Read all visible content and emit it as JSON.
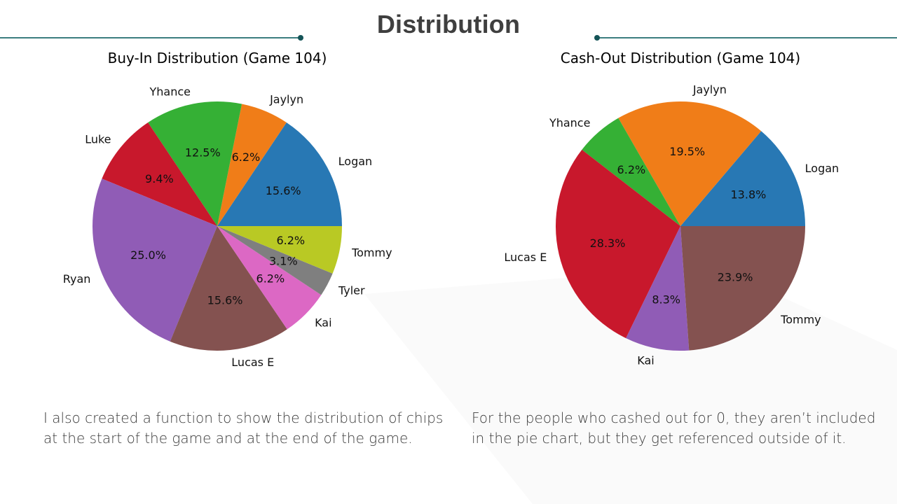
{
  "slide": {
    "title": "Distribution",
    "caption_left": "I also created a function to show the distribution of chips at the start of the game and at the end of the game.",
    "caption_right": "For the people who cashed out for 0, they aren’t included in the pie chart, but they get referenced outside of it."
  },
  "chart_data": [
    {
      "type": "pie",
      "title": "Buy-In Distribution (Game 104)",
      "start_angle_deg": 0,
      "direction": "counterclockwise",
      "slices": [
        {
          "label": "Logan",
          "value": 15.6,
          "pct_text": "15.6%",
          "color": "#2878b4"
        },
        {
          "label": "Jaylyn",
          "value": 6.2,
          "pct_text": "6.2%",
          "color": "#f07d18"
        },
        {
          "label": "Yhance",
          "value": 12.5,
          "pct_text": "12.5%",
          "color": "#35b035"
        },
        {
          "label": "Luke",
          "value": 9.4,
          "pct_text": "9.4%",
          "color": "#c8182c"
        },
        {
          "label": "Ryan",
          "value": 25.0,
          "pct_text": "25.0%",
          "color": "#905cb6"
        },
        {
          "label": "Lucas E",
          "value": 15.6,
          "pct_text": "15.6%",
          "color": "#845250"
        },
        {
          "label": "Kai",
          "value": 6.2,
          "pct_text": "6.2%",
          "color": "#dc68c4"
        },
        {
          "label": "Tyler",
          "value": 3.1,
          "pct_text": "3.1%",
          "color": "#7f7f7f"
        },
        {
          "label": "Tommy",
          "value": 6.2,
          "pct_text": "6.2%",
          "color": "#b9c924"
        }
      ]
    },
    {
      "type": "pie",
      "title": "Cash-Out Distribution (Game 104)",
      "start_angle_deg": 0,
      "direction": "counterclockwise",
      "slices": [
        {
          "label": "Logan",
          "value": 13.8,
          "pct_text": "13.8%",
          "color": "#2878b4"
        },
        {
          "label": "Jaylyn",
          "value": 19.5,
          "pct_text": "19.5%",
          "color": "#f07d18"
        },
        {
          "label": "Yhance",
          "value": 6.2,
          "pct_text": "6.2%",
          "color": "#35b035"
        },
        {
          "label": "Lucas E",
          "value": 28.3,
          "pct_text": "28.3%",
          "color": "#c8182c"
        },
        {
          "label": "Kai",
          "value": 8.3,
          "pct_text": "8.3%",
          "color": "#905cb6"
        },
        {
          "label": "Tommy",
          "value": 23.9,
          "pct_text": "23.9%",
          "color": "#845250"
        }
      ]
    }
  ],
  "colors": {
    "title_text": "#3f3f3f",
    "rule": "#3c7d80",
    "rule_dot": "#145457",
    "caption_text": "#3b3b3b"
  }
}
